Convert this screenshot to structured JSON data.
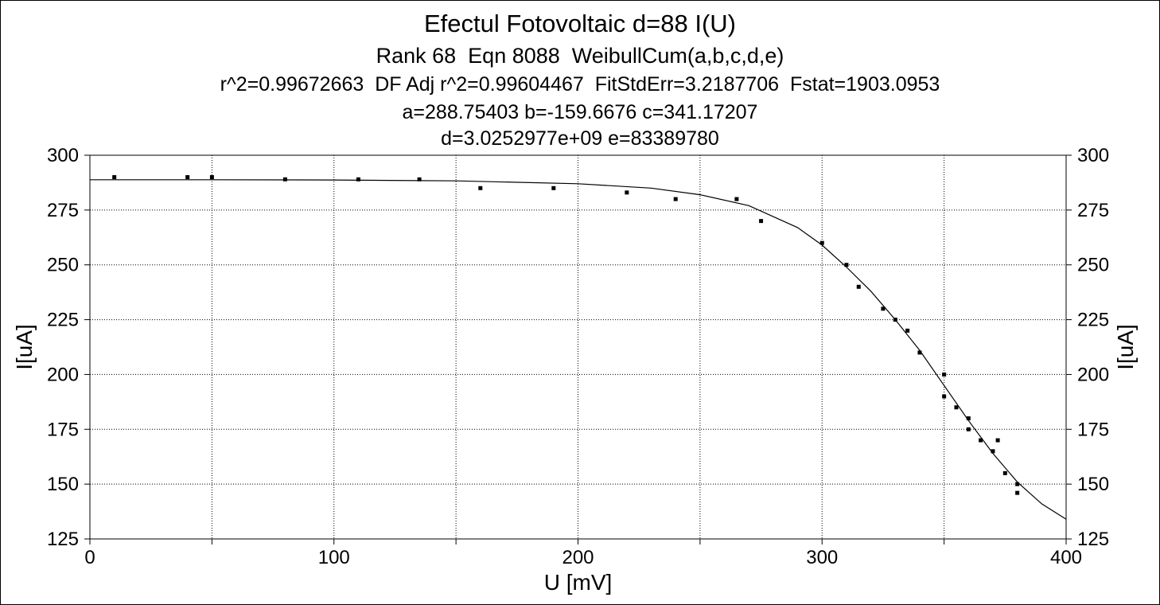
{
  "chart_data": {
    "type": "scatter",
    "title": "Efectul Fotovoltaic d=88 I(U)",
    "subtitle_lines": [
      "Rank 68  Eqn 8088  WeibullCum(a,b,c,d,e)",
      "r^2=0.99672663  DF Adj r^2=0.99604467  FitStdErr=3.2187706  Fstat=1903.0953",
      "a=288.75403 b=-159.6676 c=341.17207",
      "d=3.0252977e+09 e=83389780"
    ],
    "xlabel": "U [mV]",
    "ylabel": "I[uA]",
    "ylabel_right": "I[uA]",
    "xlim": [
      0,
      400
    ],
    "ylim": [
      125,
      300
    ],
    "x_ticks": [
      0,
      100,
      200,
      300,
      400
    ],
    "x_minor_ticks": [
      50,
      150,
      250,
      350
    ],
    "y_ticks": [
      125,
      150,
      175,
      200,
      225,
      250,
      275,
      300
    ],
    "grid": true,
    "series": [
      {
        "kind": "points",
        "x": [
          10,
          40,
          50,
          80,
          110,
          135,
          160,
          190,
          220,
          240,
          265,
          275,
          300,
          310,
          315,
          325,
          330,
          335,
          340,
          350,
          350,
          355,
          360,
          360,
          365,
          370,
          372,
          375,
          380,
          380
        ],
        "y": [
          290,
          290,
          290,
          289,
          289,
          289,
          285,
          285,
          283,
          280,
          280,
          270,
          260,
          250,
          240,
          230,
          225,
          220,
          210,
          200,
          190,
          185,
          180,
          175,
          170,
          165,
          170,
          155,
          150,
          146
        ]
      },
      {
        "kind": "fit",
        "x": [
          0,
          50,
          100,
          150,
          200,
          230,
          250,
          270,
          290,
          300,
          310,
          320,
          330,
          340,
          350,
          360,
          370,
          380,
          390,
          400
        ],
        "y": [
          288.8,
          288.8,
          288.7,
          288.3,
          287.0,
          285.0,
          282.0,
          277.0,
          267.0,
          259.0,
          249.0,
          238.0,
          225.0,
          211.0,
          195.0,
          179.0,
          164.0,
          151.0,
          141.0,
          134.0
        ]
      }
    ]
  }
}
